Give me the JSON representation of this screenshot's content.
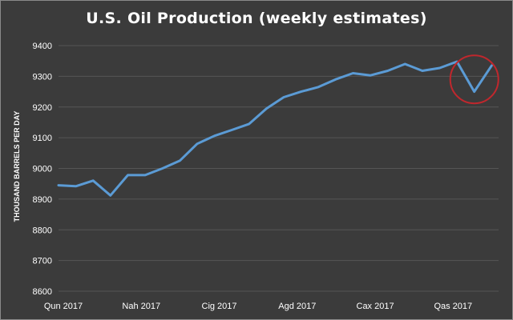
{
  "chart_data": {
    "type": "line",
    "title": "U.S. Oil Production (weekly estimates)",
    "ylabel": "THOUSAND BARRELS PER DAY",
    "xlabel": "",
    "ylim": [
      8600,
      9400
    ],
    "yticks": [
      8600,
      8700,
      8800,
      8900,
      9000,
      9100,
      9200,
      9300,
      9400
    ],
    "grid": true,
    "x_tick_labels": [
      "Qun 2017",
      "Nah 2017",
      "Cig 2017",
      "Agd 2017",
      "Cax 2017",
      "Qas 2017"
    ],
    "x_tick_positions": [
      0,
      4.5,
      9,
      13.5,
      18,
      22.5
    ],
    "series": [
      {
        "name": "U.S. Oil Production",
        "color": "#5b9bd5",
        "x": [
          0,
          1,
          2,
          3,
          4,
          5,
          6,
          7,
          8,
          9,
          10,
          11,
          12,
          13,
          14,
          15,
          16,
          17,
          18,
          19,
          20,
          21,
          22,
          23,
          24,
          25
        ],
        "values": [
          8945,
          8942,
          8960,
          8912,
          8978,
          8978,
          9000,
          9025,
          9080,
          9106,
          9125,
          9145,
          9195,
          9232,
          9250,
          9265,
          9290,
          9310,
          9303,
          9318,
          9340,
          9318,
          9327,
          9348,
          9250,
          9335
        ]
      }
    ],
    "annotation": {
      "type": "circle",
      "color": "#c0272d",
      "x": 24,
      "y": 9290,
      "note": "highlighted dip"
    }
  }
}
